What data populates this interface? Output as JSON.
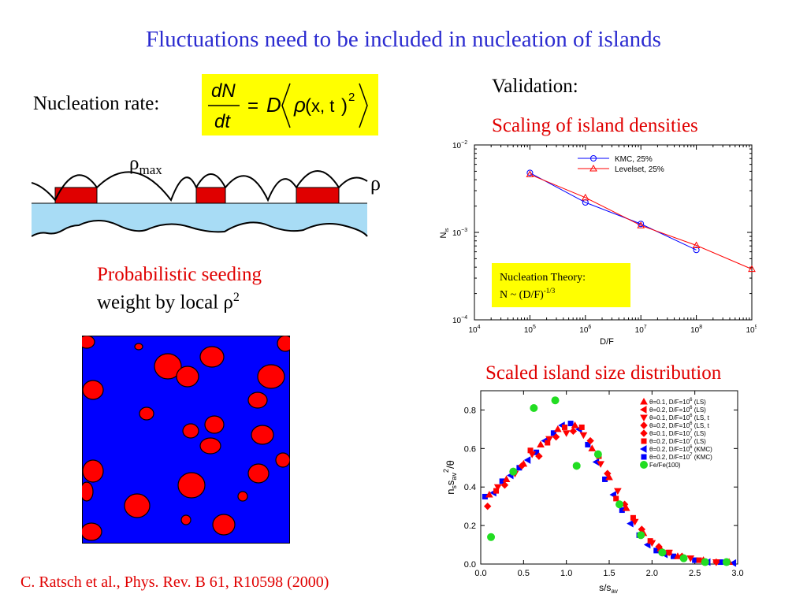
{
  "slide": {
    "title": "Fluctuations need to be included in nucleation of islands",
    "nucleation_label": "Nucleation rate:",
    "validation_label": "Validation:",
    "scaling_heading": "Scaling of island densities",
    "size_heading": "Scaled island size distribution",
    "probabilistic_line1": "Probabilistic seeding",
    "probabilistic_line2": "weight by local ρ",
    "probabilistic_sup": "2",
    "rho_max_symbol": "ρ",
    "rho_max_sub": "max",
    "rho_symbol": "ρ",
    "citation": "C. Ratsch et al., Phys. Rev. B 61, R10598 (2000)"
  },
  "formula": {
    "numerator": "dN",
    "denominator": "dt",
    "rhs_D": "D",
    "rhs_rho": "ρ",
    "rhs_args": "x, t",
    "exponent": "2"
  },
  "colors": {
    "title": "#2b2bd0",
    "accent_red": "#e00000",
    "formula_bg": "#ffff00",
    "substrate": "#a8dcf5",
    "island": "#e00000",
    "seeding_bg": "#0000ff"
  },
  "chart_data": [
    {
      "type": "line",
      "log_x": true,
      "log_y": true,
      "xlabel": "D/F",
      "ylabel": "N",
      "ylabel_sub": "is",
      "xlim": [
        10000,
        1000000000
      ],
      "ylim": [
        0.0001,
        0.01
      ],
      "x_ticks": [
        {
          "base": "10",
          "exp": "4"
        },
        {
          "base": "10",
          "exp": "5"
        },
        {
          "base": "10",
          "exp": "6"
        },
        {
          "base": "10",
          "exp": "7"
        },
        {
          "base": "10",
          "exp": "8"
        },
        {
          "base": "10",
          "exp": "9"
        }
      ],
      "y_ticks": [
        {
          "base": "10",
          "exp": "−4"
        },
        {
          "base": "10",
          "exp": "−3"
        },
        {
          "base": "10",
          "exp": "−2"
        }
      ],
      "legend_position": "top-right",
      "series": [
        {
          "name": "KMC, 25%",
          "color": "#0000ff",
          "marker": "circle",
          "x": [
            100000,
            1000000,
            10000000,
            100000000
          ],
          "y": [
            0.0048,
            0.0022,
            0.00125,
            0.00063
          ]
        },
        {
          "name": "Levelset, 25%",
          "color": "#ff0000",
          "marker": "triangle",
          "x": [
            100000,
            1000000,
            10000000,
            100000000,
            1000000000
          ],
          "y": [
            0.0046,
            0.0025,
            0.0012,
            0.00071,
            0.00038
          ]
        }
      ],
      "annotation": {
        "line1": "Nucleation Theory:",
        "line2": "N ~ (D/F)",
        "line2_sup": "-1/3"
      }
    },
    {
      "type": "scatter",
      "xlabel": "s/s",
      "xlabel_sub": "av",
      "ylabel": "n",
      "xlim": [
        0,
        3
      ],
      "ylim": [
        0,
        0.9
      ],
      "x_ticks": [
        "0.0",
        "0.5",
        "1.0",
        "1.5",
        "2.0",
        "2.5",
        "3.0"
      ],
      "y_ticks": [
        "0.0",
        "0.2",
        "0.4",
        "0.6",
        "0.8"
      ],
      "legend_position": "top-right",
      "legend_entries": [
        {
          "label": "θ=0.1, D/F=10",
          "sup": "6",
          "suffix": " (LS)",
          "color": "#ff0000",
          "marker": "tri-up"
        },
        {
          "label": "θ=0.2, D/F=10",
          "sup": "6",
          "suffix": " (LS)",
          "color": "#ff0000",
          "marker": "tri-left"
        },
        {
          "label": "θ=0.1, D/F=10",
          "sup": "6",
          "suffix": " (LS, t",
          "color": "#ff0000",
          "marker": "tri-down"
        },
        {
          "label": "θ=0.2, D/F=10",
          "sup": "6",
          "suffix": " (LS, t",
          "color": "#ff0000",
          "marker": "diamond"
        },
        {
          "label": "θ=0.1, D/F=10",
          "sup": "7",
          "suffix": " (LS)",
          "color": "#ff0000",
          "marker": "diamond"
        },
        {
          "label": "θ=0.2, D/F=10",
          "sup": "7",
          "suffix": " (LS)",
          "color": "#ff0000",
          "marker": "square"
        },
        {
          "label": "θ=0.2, D/F=10",
          "sup": "6",
          "suffix": " (KMC)",
          "color": "#0000ff",
          "marker": "tri-left"
        },
        {
          "label": "θ=0.2, D/F=10",
          "sup": "7",
          "suffix": " (KMC)",
          "color": "#0000ff",
          "marker": "square"
        },
        {
          "label": "Fe/Fe(100)",
          "sup": "",
          "suffix": "",
          "color": "#22dd22",
          "marker": "circle"
        }
      ],
      "series": [
        {
          "name": "θ=0.2, D/F=10⁶ (KMC)",
          "color": "#0000ff",
          "x": [
            0.05,
            0.15,
            0.25,
            0.35,
            0.45,
            0.55,
            0.65,
            0.75,
            0.85,
            0.95,
            1.05,
            1.15,
            1.25,
            1.35,
            1.45,
            1.55,
            1.65,
            1.75,
            1.85,
            1.95,
            2.05,
            2.15,
            2.25,
            2.35,
            2.5,
            2.65,
            2.8,
            2.95
          ],
          "y": [
            0.35,
            0.37,
            0.43,
            0.46,
            0.5,
            0.54,
            0.58,
            0.64,
            0.68,
            0.72,
            0.73,
            0.7,
            0.62,
            0.53,
            0.44,
            0.36,
            0.28,
            0.21,
            0.15,
            0.1,
            0.07,
            0.05,
            0.04,
            0.03,
            0.02,
            0.01,
            0.01,
            0.005
          ]
        },
        {
          "name": "θ=0.1, D/F=10⁶ (LS)",
          "color": "#ff0000",
          "x": [
            0.1,
            0.2,
            0.3,
            0.4,
            0.5,
            0.6,
            0.7,
            0.8,
            0.9,
            1.0,
            1.1,
            1.2,
            1.3,
            1.4,
            1.5,
            1.6,
            1.7,
            1.8,
            1.9,
            2.0,
            2.1,
            2.2,
            2.3,
            2.45,
            2.6,
            2.75,
            2.9
          ],
          "y": [
            0.36,
            0.4,
            0.44,
            0.47,
            0.52,
            0.57,
            0.62,
            0.65,
            0.7,
            0.68,
            0.72,
            0.67,
            0.6,
            0.52,
            0.45,
            0.38,
            0.29,
            0.22,
            0.16,
            0.11,
            0.08,
            0.06,
            0.04,
            0.03,
            0.02,
            0.01,
            0.01
          ]
        },
        {
          "name": "θ=0.2, D/F=10⁷ (LS)",
          "color": "#ff0000",
          "x": [
            0.08,
            0.18,
            0.28,
            0.38,
            0.48,
            0.58,
            0.68,
            0.78,
            0.88,
            0.98,
            1.08,
            1.18,
            1.28,
            1.38,
            1.48,
            1.58,
            1.68,
            1.78,
            1.88,
            1.98,
            2.08,
            2.2,
            2.35,
            2.55,
            2.75
          ],
          "y": [
            0.3,
            0.38,
            0.41,
            0.48,
            0.51,
            0.59,
            0.56,
            0.63,
            0.66,
            0.71,
            0.69,
            0.71,
            0.64,
            0.56,
            0.47,
            0.34,
            0.31,
            0.24,
            0.18,
            0.12,
            0.09,
            0.06,
            0.04,
            0.02,
            0.01
          ]
        },
        {
          "name": "Fe/Fe(100)",
          "color": "#22dd22",
          "x": [
            0.12,
            0.38,
            0.62,
            0.87,
            1.12,
            1.37,
            1.62,
            1.87,
            2.12,
            2.37,
            2.62,
            2.87
          ],
          "y": [
            0.14,
            0.48,
            0.81,
            0.85,
            0.51,
            0.57,
            0.31,
            0.15,
            0.06,
            0.03,
            0.01,
            0.01
          ]
        }
      ]
    }
  ]
}
